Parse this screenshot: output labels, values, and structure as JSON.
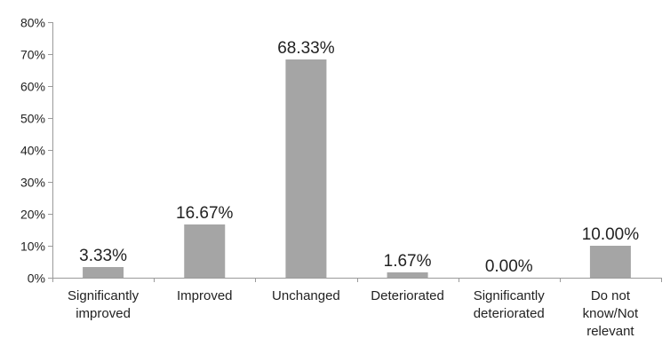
{
  "chart_data": {
    "type": "bar",
    "categories": [
      [
        "Significantly",
        "improved"
      ],
      [
        "Improved"
      ],
      [
        "Unchanged"
      ],
      [
        "Deteriorated"
      ],
      [
        "Significantly",
        "deteriorated"
      ],
      [
        "Do not",
        "know/Not",
        "relevant"
      ]
    ],
    "values": [
      3.33,
      16.67,
      68.33,
      1.67,
      0.0,
      10.0
    ],
    "data_labels": [
      "3.33%",
      "16.67%",
      "68.33%",
      "1.67%",
      "0.00%",
      "10.00%"
    ],
    "y_ticks": [
      "0%",
      "10%",
      "20%",
      "30%",
      "40%",
      "50%",
      "60%",
      "70%",
      "80%"
    ],
    "ylim": [
      0,
      80
    ],
    "grid": false,
    "legend": "none",
    "bar_color": "#a5a5a5",
    "title": "",
    "xlabel": "",
    "ylabel": ""
  }
}
